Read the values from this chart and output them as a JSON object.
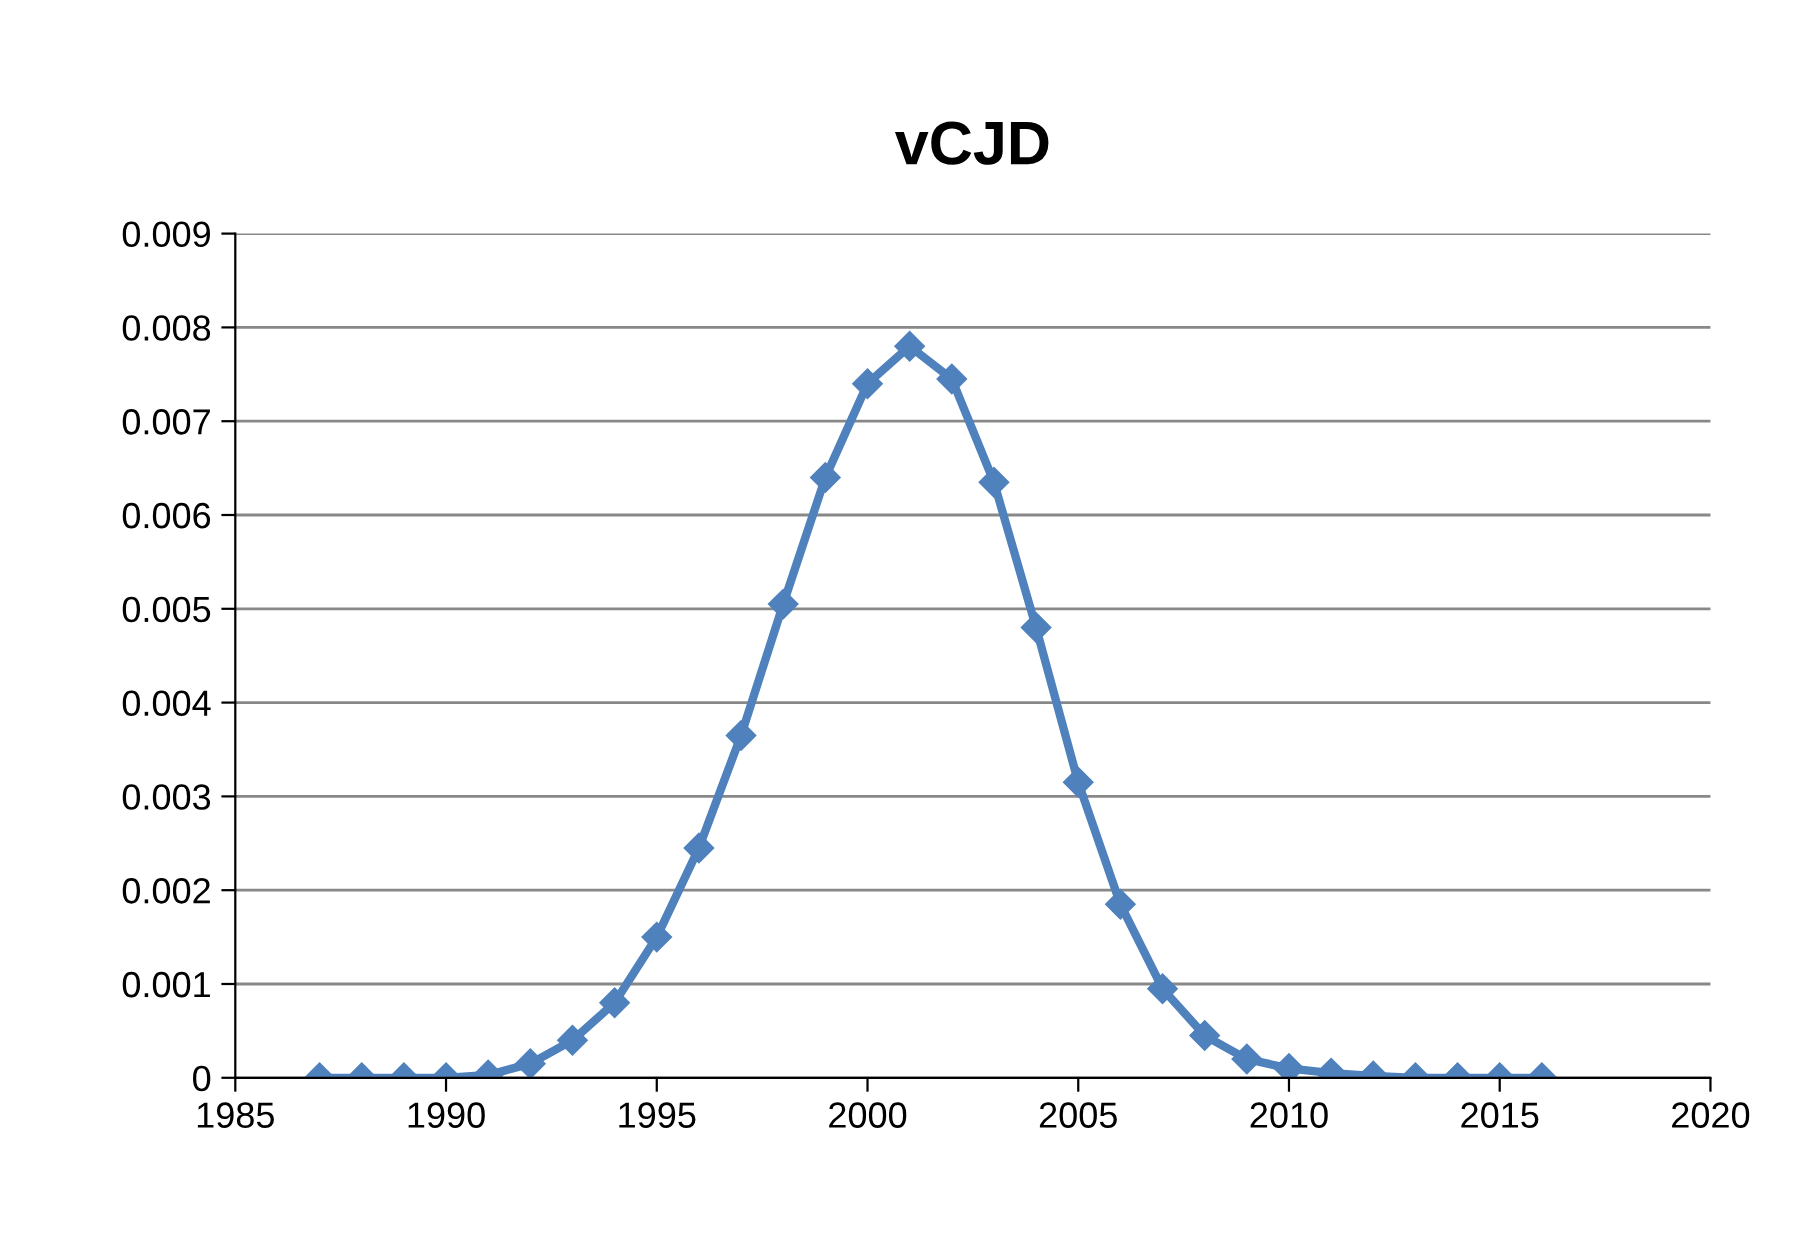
{
  "chart_data": {
    "type": "line",
    "title": "vCJD",
    "x": [
      1987,
      1988,
      1989,
      1990,
      1991,
      1992,
      1993,
      1994,
      1995,
      1996,
      1997,
      1998,
      1999,
      2000,
      2001,
      2002,
      2003,
      2004,
      2005,
      2006,
      2007,
      2008,
      2009,
      2010,
      2011,
      2012,
      2013,
      2014,
      2015,
      2016
    ],
    "series": [
      {
        "color": "#4f81bd",
        "values": [
          0,
          0,
          0,
          0,
          3e-05,
          0.00015,
          0.0004,
          0.0008,
          0.0015,
          0.00245,
          0.00365,
          0.00505,
          0.0064,
          0.0074,
          0.0078,
          0.00745,
          0.00635,
          0.0048,
          0.00315,
          0.00185,
          0.00095,
          0.00045,
          0.0002,
          0.0001,
          5e-05,
          2e-05,
          0,
          0,
          0,
          0
        ]
      }
    ],
    "xlim": [
      1985,
      2020
    ],
    "xticks": [
      1985,
      1990,
      1995,
      2000,
      2005,
      2010,
      2015,
      2020
    ],
    "ylim": [
      0,
      0.009
    ],
    "yticks": [
      {
        "value": 0,
        "label": "0"
      },
      0.001,
      0.002,
      0.003,
      0.004,
      0.005,
      0.006,
      0.007,
      0.008,
      0.009
    ],
    "grid": "y",
    "marker": "diamond",
    "line_style": "solid"
  }
}
